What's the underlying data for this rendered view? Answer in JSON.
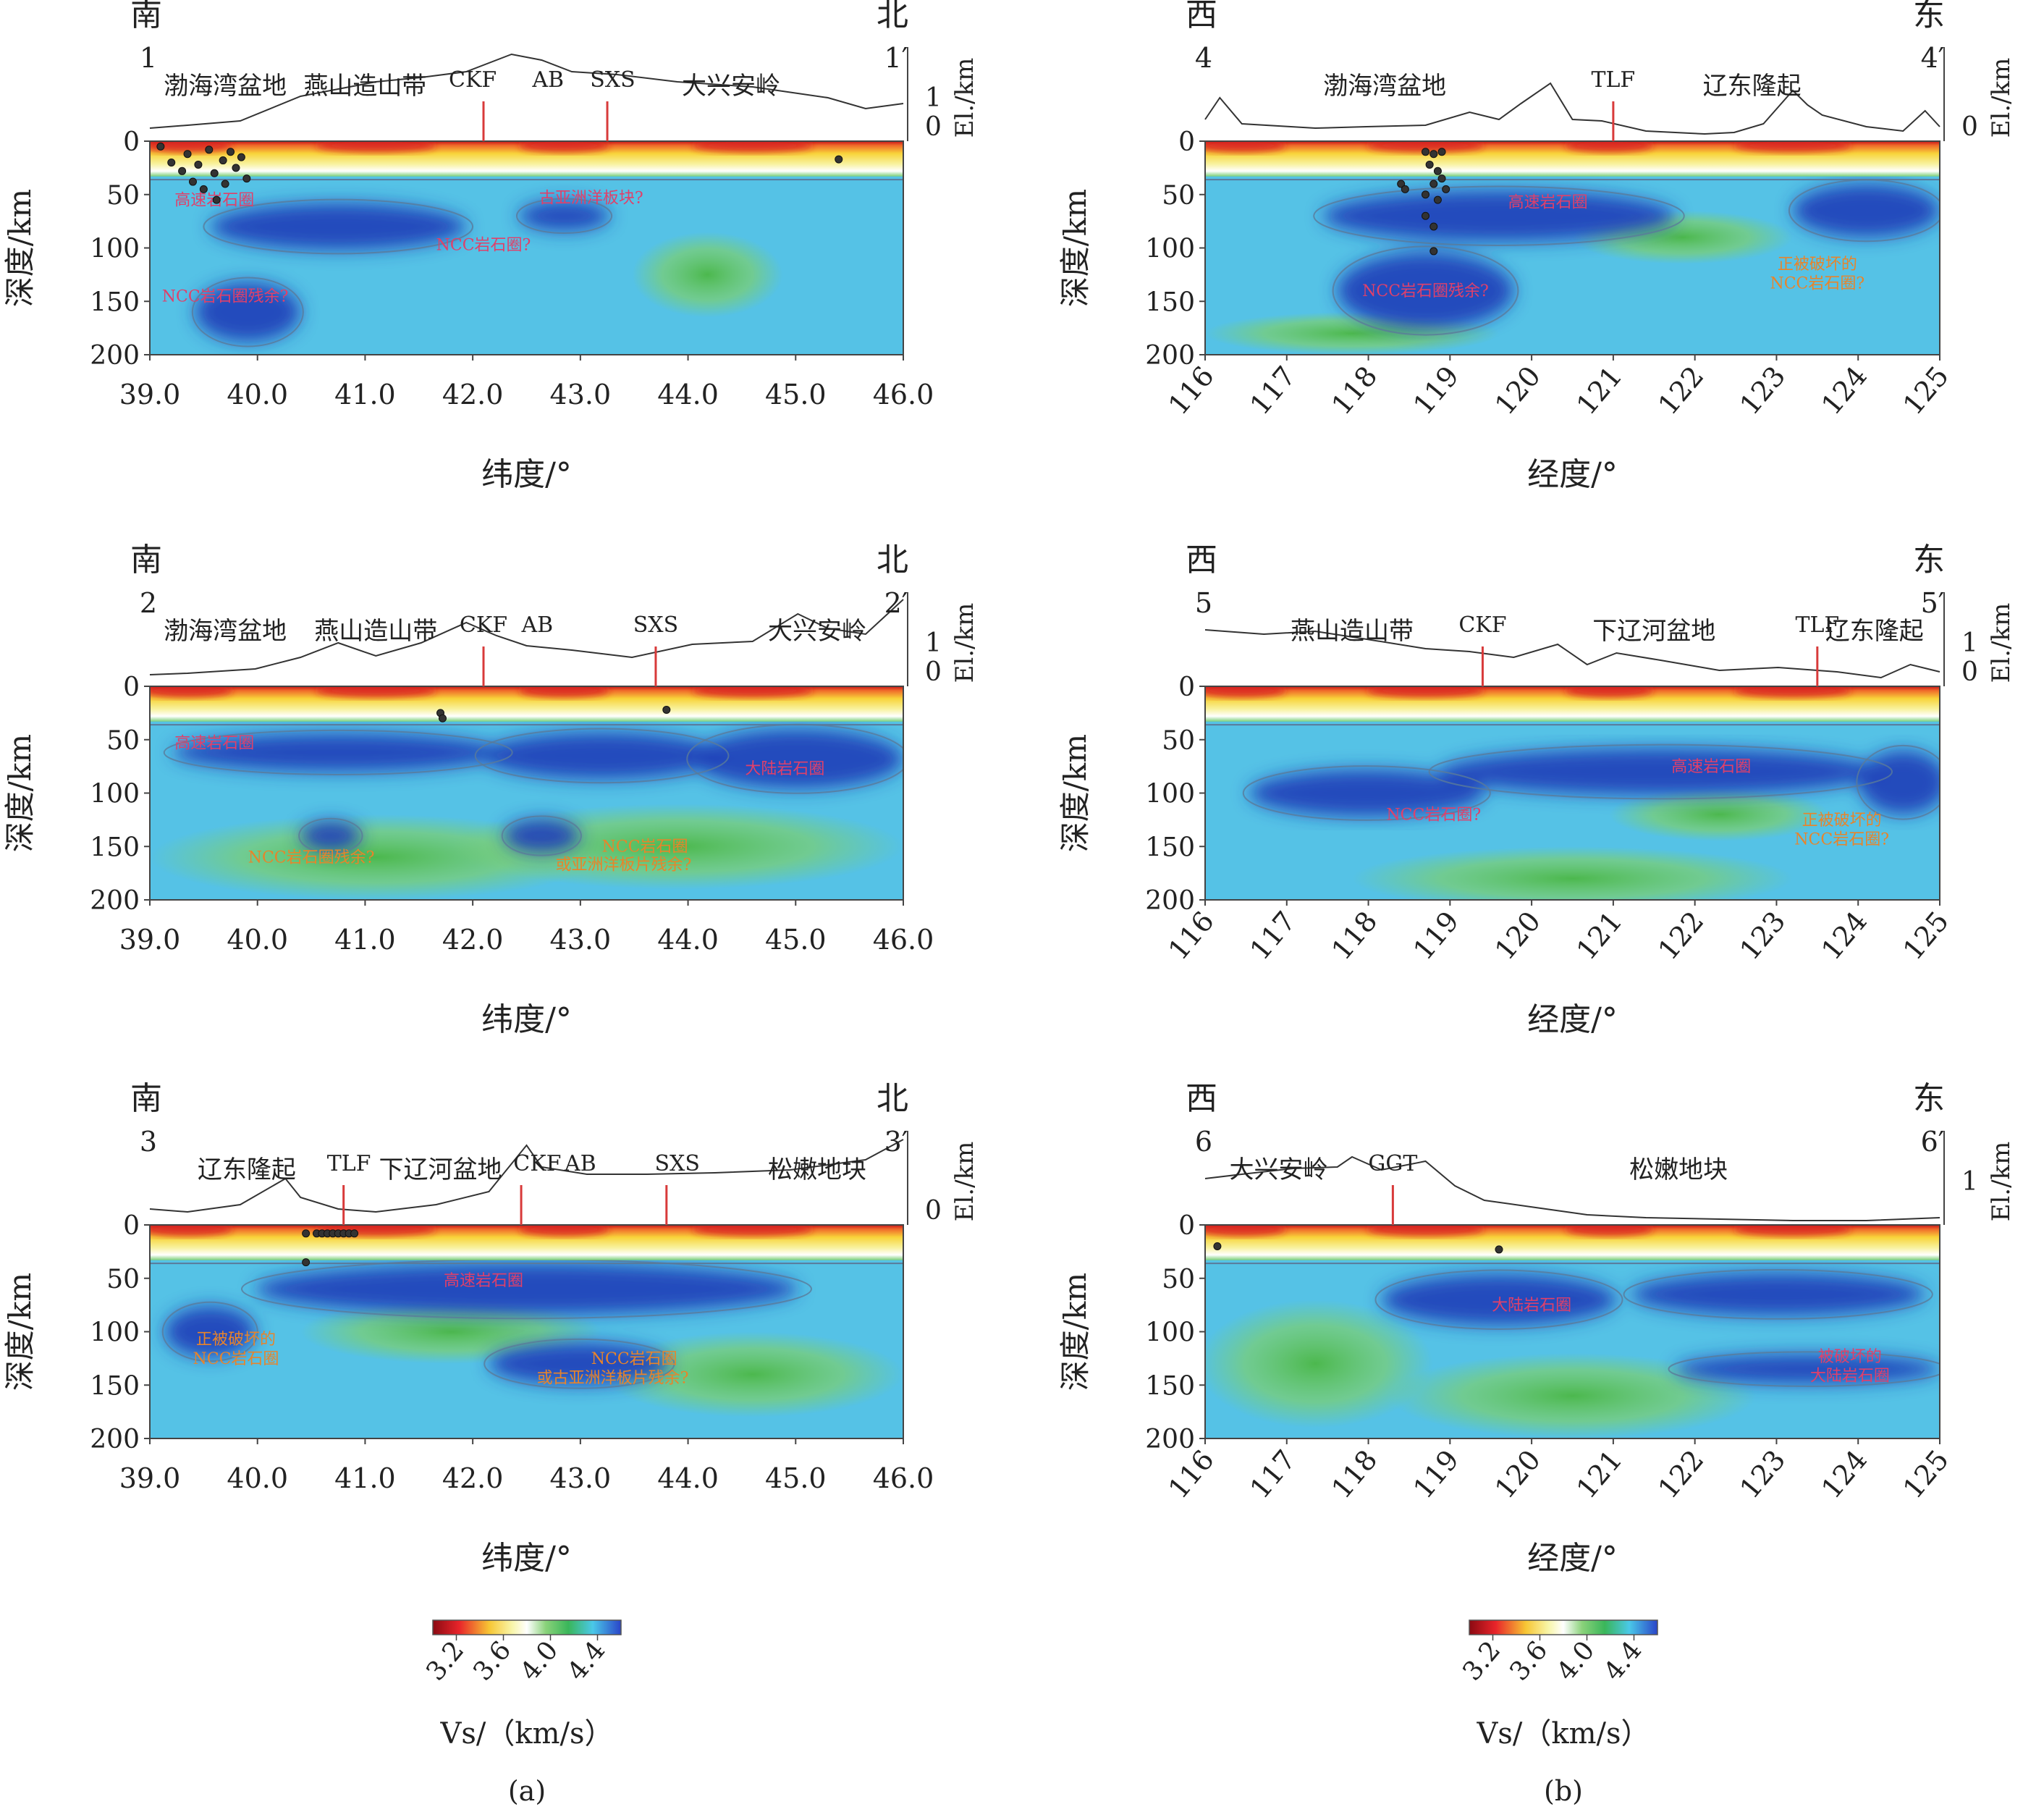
{
  "chart_data": [
    {
      "type": "heatmap",
      "id": "1",
      "start_dir": "南",
      "end_dir": "北",
      "start_label": "1",
      "end_label": "1′",
      "xlabel": "纬度/°",
      "ylabel": "深度/km",
      "elev_label": "El./km",
      "elev_ticks": [
        "1",
        "0"
      ],
      "xlim": [
        39.0,
        46.0
      ],
      "xticks": [
        "39.0",
        "40.0",
        "41.0",
        "42.0",
        "43.0",
        "44.0",
        "45.0",
        "46.0"
      ],
      "ylim": [
        0,
        200
      ],
      "yticks": [
        "0",
        "50",
        "100",
        "150",
        "200"
      ],
      "regions": [
        {
          "label": "渤海湾盆地",
          "x": 39.7
        },
        {
          "label": "燕山造山带",
          "x": 41.0
        },
        {
          "label": "CKF",
          "x": 42.0
        },
        {
          "label": "AB",
          "x": 42.7
        },
        {
          "label": "SXS",
          "x": 43.3
        },
        {
          "label": "大兴安岭",
          "x": 44.4
        }
      ],
      "faults": [
        {
          "name": "CKF",
          "x": 42.1
        },
        {
          "name": "SXS",
          "x": 43.25
        }
      ],
      "annotations": [
        {
          "text": "高速岩石圈",
          "x": 39.6,
          "depth": 60,
          "color": "#e0406a"
        },
        {
          "text": "古亚洲洋板块?",
          "x": 43.1,
          "depth": 58,
          "color": "#e0406a"
        },
        {
          "text": "NCC岩石圈?",
          "x": 42.1,
          "depth": 102,
          "color": "#e0406a"
        },
        {
          "text": "NCC岩石圈残余?",
          "x": 39.7,
          "depth": 150,
          "color": "#e0406a"
        }
      ],
      "earthquakes": [
        {
          "x": 39.1,
          "depth": 5
        },
        {
          "x": 39.2,
          "depth": 20
        },
        {
          "x": 39.3,
          "depth": 28
        },
        {
          "x": 39.35,
          "depth": 12
        },
        {
          "x": 39.4,
          "depth": 38
        },
        {
          "x": 39.45,
          "depth": 22
        },
        {
          "x": 39.5,
          "depth": 45
        },
        {
          "x": 39.55,
          "depth": 8
        },
        {
          "x": 39.6,
          "depth": 30
        },
        {
          "x": 39.62,
          "depth": 55
        },
        {
          "x": 39.68,
          "depth": 18
        },
        {
          "x": 39.7,
          "depth": 40
        },
        {
          "x": 39.75,
          "depth": 10
        },
        {
          "x": 39.8,
          "depth": 25
        },
        {
          "x": 39.85,
          "depth": 15
        },
        {
          "x": 39.9,
          "depth": 35
        },
        {
          "x": 45.4,
          "depth": 17
        }
      ]
    },
    {
      "type": "heatmap",
      "id": "2",
      "start_dir": "南",
      "end_dir": "北",
      "start_label": "2",
      "end_label": "2′",
      "xlabel": "纬度/°",
      "ylabel": "深度/km",
      "elev_label": "El./km",
      "elev_ticks": [
        "1",
        "0"
      ],
      "xlim": [
        39.0,
        46.0
      ],
      "xticks": [
        "39.0",
        "40.0",
        "41.0",
        "42.0",
        "43.0",
        "44.0",
        "45.0",
        "46.0"
      ],
      "ylim": [
        0,
        200
      ],
      "yticks": [
        "0",
        "50",
        "100",
        "150",
        "200"
      ],
      "regions": [
        {
          "label": "渤海湾盆地",
          "x": 39.7
        },
        {
          "label": "燕山造山带",
          "x": 41.1
        },
        {
          "label": "CKF",
          "x": 42.1
        },
        {
          "label": "AB",
          "x": 42.6
        },
        {
          "label": "SXS",
          "x": 43.7
        },
        {
          "label": "大兴安岭",
          "x": 45.2
        }
      ],
      "faults": [
        {
          "name": "CKF",
          "x": 42.1
        },
        {
          "name": "SXS",
          "x": 43.7
        }
      ],
      "annotations": [
        {
          "text": "高速岩石圈",
          "x": 39.6,
          "depth": 58,
          "color": "#e0406a"
        },
        {
          "text": "大陆岩石圈",
          "x": 44.9,
          "depth": 82,
          "color": "#e0406a"
        },
        {
          "text": "NCC岩石圈残余?",
          "x": 40.5,
          "depth": 165,
          "color": "#e8842a"
        },
        {
          "text": "NCC岩石圈",
          "x": 43.6,
          "depth": 155,
          "color": "#e8842a"
        },
        {
          "text": "或亚洲洋板片残余?",
          "x": 43.4,
          "depth": 172,
          "color": "#e8842a"
        }
      ],
      "earthquakes": [
        {
          "x": 41.7,
          "depth": 25
        },
        {
          "x": 41.72,
          "depth": 30
        },
        {
          "x": 43.8,
          "depth": 22
        }
      ]
    },
    {
      "type": "heatmap",
      "id": "3",
      "start_dir": "南",
      "end_dir": "北",
      "start_label": "3",
      "end_label": "3′",
      "xlabel": "纬度/°",
      "ylabel": "深度/km",
      "elev_label": "El./km",
      "elev_ticks": [
        "0"
      ],
      "xlim": [
        39.0,
        46.0
      ],
      "xticks": [
        "39.0",
        "40.0",
        "41.0",
        "42.0",
        "43.0",
        "44.0",
        "45.0",
        "46.0"
      ],
      "ylim": [
        0,
        200
      ],
      "yticks": [
        "0",
        "50",
        "100",
        "150",
        "200"
      ],
      "regions": [
        {
          "label": "辽东隆起",
          "x": 39.9
        },
        {
          "label": "TLF",
          "x": 40.85
        },
        {
          "label": "下辽河盆地",
          "x": 41.7
        },
        {
          "label": "CKF",
          "x": 42.6
        },
        {
          "label": "AB",
          "x": 43.0
        },
        {
          "label": "SXS",
          "x": 43.9
        },
        {
          "label": "松嫩地块",
          "x": 45.2
        }
      ],
      "faults": [
        {
          "name": "TLF",
          "x": 40.8
        },
        {
          "name": "CKF",
          "x": 42.45
        },
        {
          "name": "SXS",
          "x": 43.8
        }
      ],
      "annotations": [
        {
          "text": "高速岩石圈",
          "x": 42.1,
          "depth": 57,
          "color": "#e0406a"
        },
        {
          "text": "正被破坏的",
          "x": 39.8,
          "depth": 112,
          "color": "#e8842a"
        },
        {
          "text": "NCC岩石圈",
          "x": 39.8,
          "depth": 130,
          "color": "#e8842a"
        },
        {
          "text": "NCC岩石圈",
          "x": 43.5,
          "depth": 130,
          "color": "#e8842a"
        },
        {
          "text": "或古亚洲洋板片残余?",
          "x": 43.3,
          "depth": 148,
          "color": "#e8842a"
        }
      ],
      "earthquakes": [
        {
          "x": 40.45,
          "depth": 8
        },
        {
          "x": 40.55,
          "depth": 8
        },
        {
          "x": 40.6,
          "depth": 8
        },
        {
          "x": 40.65,
          "depth": 8
        },
        {
          "x": 40.7,
          "depth": 8
        },
        {
          "x": 40.75,
          "depth": 8
        },
        {
          "x": 40.8,
          "depth": 8
        },
        {
          "x": 40.85,
          "depth": 8
        },
        {
          "x": 40.9,
          "depth": 8
        },
        {
          "x": 40.45,
          "depth": 35
        }
      ]
    },
    {
      "type": "heatmap",
      "id": "4",
      "start_dir": "西",
      "end_dir": "东",
      "start_label": "4",
      "end_label": "4′",
      "xlabel": "经度/°",
      "ylabel": "深度/km",
      "elev_label": "El./km",
      "elev_ticks": [
        "0"
      ],
      "xlim": [
        116,
        125
      ],
      "xticks": [
        "116",
        "117",
        "118",
        "119",
        "120",
        "121",
        "122",
        "123",
        "124",
        "125"
      ],
      "ylim": [
        0,
        200
      ],
      "yticks": [
        "0",
        "50",
        "100",
        "150",
        "200"
      ],
      "regions": [
        {
          "label": "渤海湾盆地",
          "x": 118.2
        },
        {
          "label": "TLF",
          "x": 121.0
        },
        {
          "label": "辽东隆起",
          "x": 122.7
        }
      ],
      "faults": [
        {
          "name": "TLF",
          "x": 121.0
        }
      ],
      "annotations": [
        {
          "text": "高速岩石圈",
          "x": 120.2,
          "depth": 62,
          "color": "#e0406a"
        },
        {
          "text": "NCC岩石圈残余?",
          "x": 118.7,
          "depth": 145,
          "color": "#e0406a"
        },
        {
          "text": "正被破坏的",
          "x": 123.5,
          "depth": 120,
          "color": "#e8842a"
        },
        {
          "text": "NCC岩石圈?",
          "x": 123.5,
          "depth": 138,
          "color": "#e8842a"
        }
      ],
      "earthquakes": [
        {
          "x": 118.7,
          "depth": 10
        },
        {
          "x": 118.8,
          "depth": 12
        },
        {
          "x": 118.9,
          "depth": 10
        },
        {
          "x": 118.75,
          "depth": 22
        },
        {
          "x": 118.85,
          "depth": 28
        },
        {
          "x": 118.9,
          "depth": 35
        },
        {
          "x": 118.8,
          "depth": 40
        },
        {
          "x": 118.95,
          "depth": 45
        },
        {
          "x": 118.7,
          "depth": 50
        },
        {
          "x": 118.85,
          "depth": 55
        },
        {
          "x": 118.4,
          "depth": 40
        },
        {
          "x": 118.45,
          "depth": 45
        },
        {
          "x": 118.7,
          "depth": 70
        },
        {
          "x": 118.8,
          "depth": 80
        },
        {
          "x": 118.8,
          "depth": 103
        }
      ]
    },
    {
      "type": "heatmap",
      "id": "5",
      "start_dir": "西",
      "end_dir": "东",
      "start_label": "5",
      "end_label": "5′",
      "xlabel": "经度/°",
      "ylabel": "深度/km",
      "elev_label": "El./km",
      "elev_ticks": [
        "1",
        "0"
      ],
      "xlim": [
        116,
        125
      ],
      "xticks": [
        "116",
        "117",
        "118",
        "119",
        "120",
        "121",
        "122",
        "123",
        "124",
        "125"
      ],
      "ylim": [
        0,
        200
      ],
      "yticks": [
        "0",
        "50",
        "100",
        "150",
        "200"
      ],
      "regions": [
        {
          "label": "燕山造山带",
          "x": 117.8
        },
        {
          "label": "CKF",
          "x": 119.4
        },
        {
          "label": "下辽河盆地",
          "x": 121.5
        },
        {
          "label": "TLF",
          "x": 123.5
        },
        {
          "label": "辽东隆起",
          "x": 124.2
        }
      ],
      "faults": [
        {
          "name": "CKF",
          "x": 119.4
        },
        {
          "name": "TLF",
          "x": 123.5
        }
      ],
      "annotations": [
        {
          "text": "高速岩石圈",
          "x": 122.2,
          "depth": 80,
          "color": "#e0406a"
        },
        {
          "text": "NCC岩石圈?",
          "x": 118.8,
          "depth": 125,
          "color": "#e0406a"
        },
        {
          "text": "正被破坏的",
          "x": 123.8,
          "depth": 130,
          "color": "#e8842a"
        },
        {
          "text": "NCC岩石圈?",
          "x": 123.8,
          "depth": 148,
          "color": "#e8842a"
        }
      ],
      "earthquakes": []
    },
    {
      "type": "heatmap",
      "id": "6",
      "start_dir": "西",
      "end_dir": "东",
      "start_label": "6",
      "end_label": "6′",
      "xlabel": "经度/°",
      "ylabel": "深度/km",
      "elev_label": "El./km",
      "elev_ticks": [
        "1"
      ],
      "xlim": [
        116,
        125
      ],
      "xticks": [
        "116",
        "117",
        "118",
        "119",
        "120",
        "121",
        "122",
        "123",
        "124",
        "125"
      ],
      "ylim": [
        0,
        200
      ],
      "yticks": [
        "0",
        "50",
        "100",
        "150",
        "200"
      ],
      "regions": [
        {
          "label": "大兴安岭",
          "x": 116.9
        },
        {
          "label": "GGT",
          "x": 118.3
        },
        {
          "label": "松嫩地块",
          "x": 121.8
        }
      ],
      "faults": [
        {
          "name": "GGT",
          "x": 118.3
        }
      ],
      "annotations": [
        {
          "text": "大陆岩石圈",
          "x": 120.0,
          "depth": 80,
          "color": "#e0406a"
        },
        {
          "text": "被破坏的",
          "x": 123.9,
          "depth": 128,
          "color": "#e0406a"
        },
        {
          "text": "大陆岩石圈",
          "x": 123.9,
          "depth": 146,
          "color": "#e0406a"
        }
      ],
      "earthquakes": [
        {
          "x": 116.15,
          "depth": 20
        },
        {
          "x": 119.6,
          "depth": 23
        }
      ]
    }
  ],
  "colorbar": {
    "label": "Vs/（km/s）",
    "ticks": [
      "3.2",
      "3.6",
      "4.0",
      "4.4"
    ],
    "range": [
      3.0,
      4.6
    ],
    "colors": [
      "#8b0a12",
      "#e8242a",
      "#f7c634",
      "#f8f5a8",
      "#ffffff",
      "#8ad27a",
      "#3ab65a",
      "#4ac8e8",
      "#2a44c8"
    ]
  },
  "panel_labels": [
    "(a)",
    "(b)"
  ],
  "colors": {
    "fault": "#d83a3a",
    "contour": "#5a7a9a",
    "topo": "#333333",
    "quake": "#333333",
    "velocity_low": "#d81e1e",
    "velocity_high": "#1f3fb8",
    "mantle": "#55c2e6",
    "green": "#5ec460"
  }
}
